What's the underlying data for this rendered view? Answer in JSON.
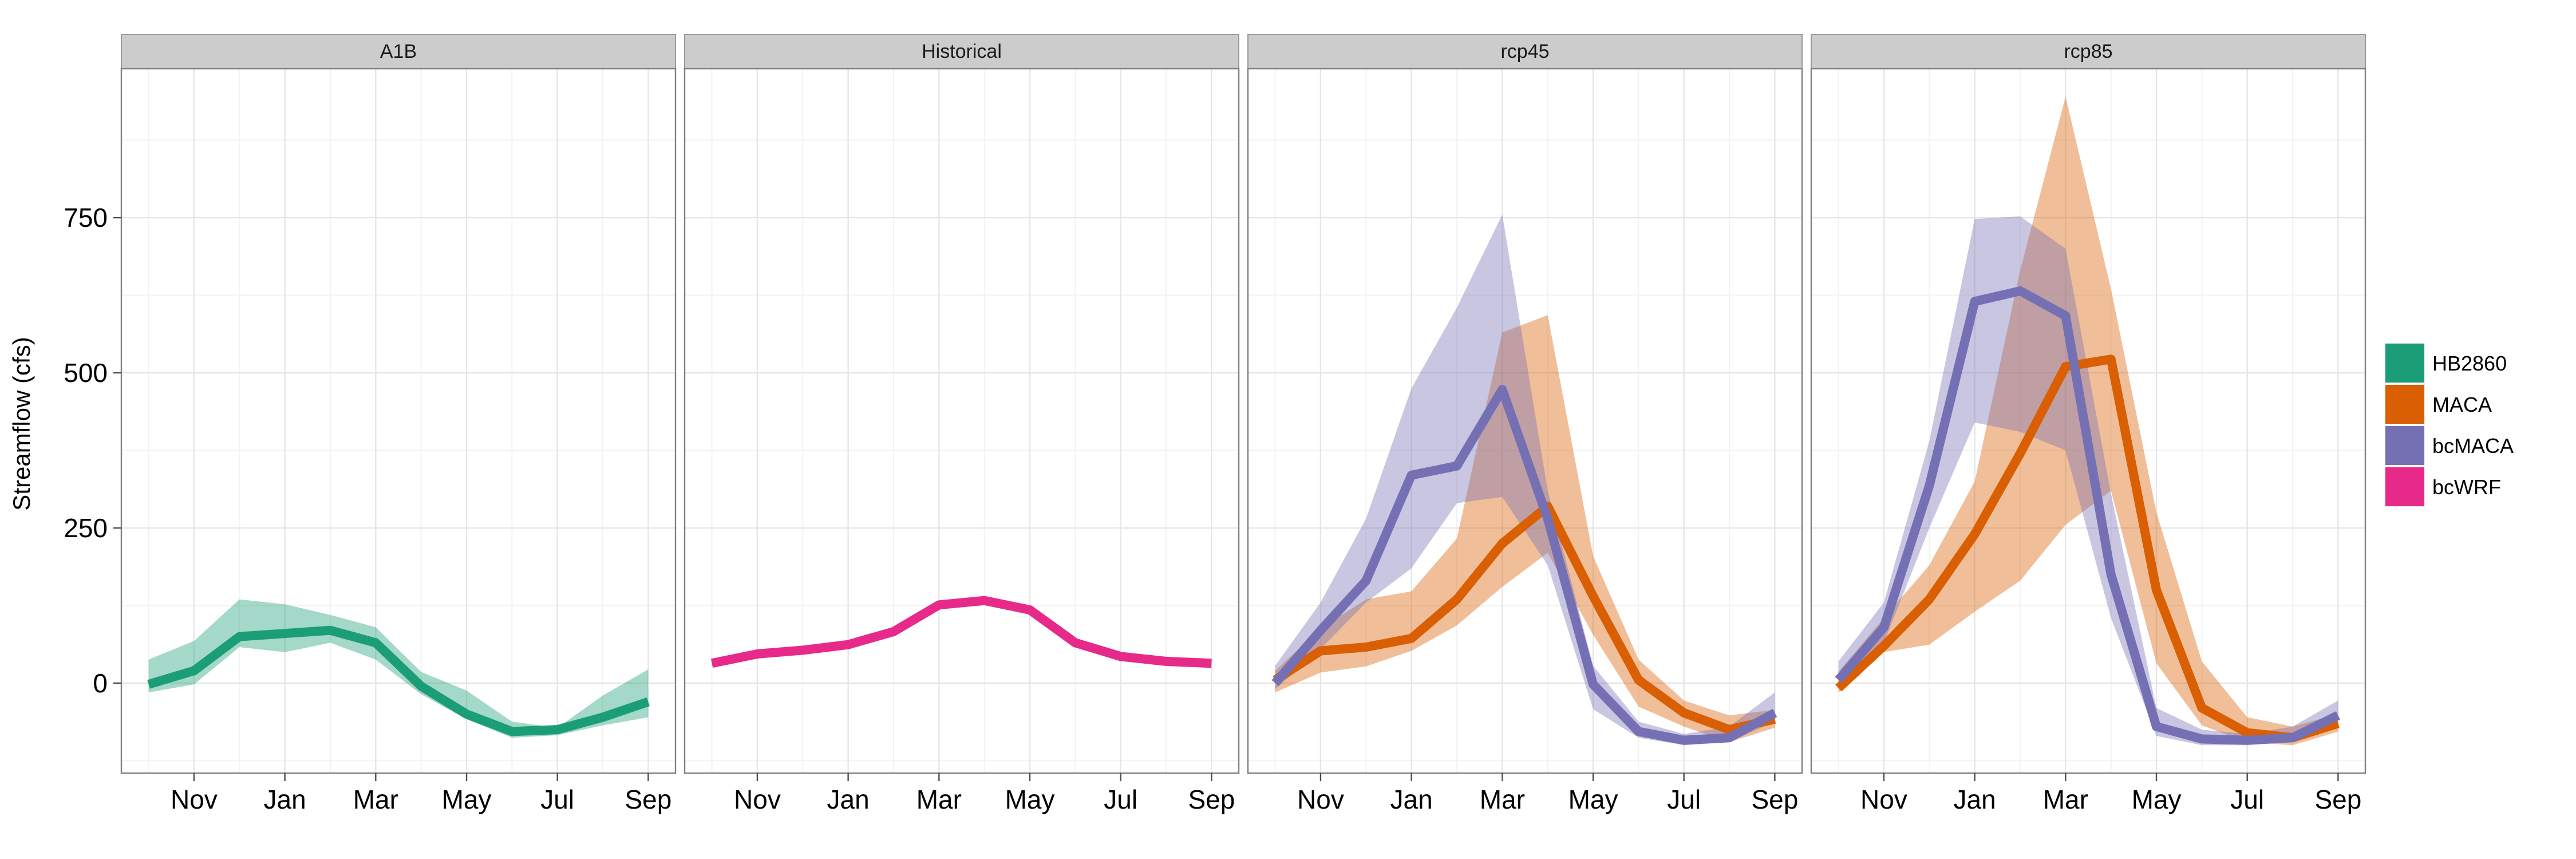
{
  "chart_data": {
    "type": "line",
    "ylabel": "Streamflow (cfs)",
    "xlabel": "",
    "x_tick_labels": [
      "Nov",
      "Jan",
      "Mar",
      "May",
      "Jul",
      "Sep"
    ],
    "x_tick_positions": [
      1,
      3,
      5,
      7,
      9,
      11
    ],
    "x_range": [
      -0.6,
      11.6
    ],
    "y_ticks": [
      0,
      250,
      500,
      750
    ],
    "y_range": [
      -145,
      990
    ],
    "grid": true,
    "legend": {
      "placement": "right",
      "entries": [
        {
          "name": "HB2860",
          "color": "#1b9e77"
        },
        {
          "name": "MACA",
          "color": "#d95f02"
        },
        {
          "name": "bcMACA",
          "color": "#7570b3"
        },
        {
          "name": "bcWRF",
          "color": "#e7298a"
        }
      ]
    },
    "panels": [
      {
        "title": "A1B",
        "series": [
          {
            "name": "HB2860",
            "x": [
              0,
              1,
              2,
              3,
              4,
              5,
              6,
              7,
              8,
              9,
              10,
              11
            ],
            "mean": [
              -2,
              20,
              75,
              80,
              85,
              65,
              -5,
              -50,
              -78,
              -75,
              -55,
              -30
            ],
            "lower": [
              -15,
              -2,
              58,
              50,
              65,
              38,
              -18,
              -58,
              -88,
              -84,
              -68,
              -55
            ],
            "upper": [
              38,
              68,
              135,
              127,
              110,
              90,
              18,
              -12,
              -62,
              -72,
              -20,
              22
            ]
          }
        ]
      },
      {
        "title": "Historical",
        "series": [
          {
            "name": "bcWRF",
            "x": [
              0,
              1,
              2,
              3,
              4,
              5,
              6,
              7,
              8,
              9,
              10,
              11
            ],
            "mean": [
              32,
              47,
              53,
              62,
              83,
              126,
              133,
              118,
              65,
              43,
              35,
              32
            ]
          }
        ]
      },
      {
        "title": "rcp45",
        "series": [
          {
            "name": "MACA",
            "x": [
              0,
              1,
              2,
              3,
              4,
              5,
              6,
              7,
              8,
              9,
              10,
              11
            ],
            "mean": [
              5,
              52,
              58,
              72,
              135,
              225,
              285,
              140,
              5,
              -48,
              -75,
              -58
            ],
            "lower": [
              -15,
              17,
              27,
              52,
              93,
              155,
              210,
              78,
              -38,
              -70,
              -95,
              -72
            ],
            "upper": [
              20,
              88,
              135,
              148,
              233,
              565,
              593,
              205,
              38,
              -28,
              -52,
              -43
            ]
          },
          {
            "name": "bcMACA",
            "x": [
              0,
              1,
              2,
              3,
              4,
              5,
              6,
              7,
              8,
              9,
              10,
              11
            ],
            "mean": [
              0,
              85,
              165,
              335,
              350,
              473,
              265,
              -2,
              -78,
              -92,
              -88,
              -48
            ],
            "lower": [
              -10,
              55,
              130,
              185,
              290,
              300,
              190,
              -42,
              -88,
              -100,
              -95,
              -62
            ],
            "upper": [
              28,
              130,
              265,
              475,
              605,
              755,
              310,
              28,
              -62,
              -82,
              -70,
              -15
            ]
          }
        ]
      },
      {
        "title": "rcp85",
        "series": [
          {
            "name": "MACA",
            "x": [
              0,
              1,
              2,
              3,
              4,
              5,
              6,
              7,
              8,
              9,
              10,
              11
            ],
            "mean": [
              -8,
              60,
              135,
              240,
              370,
              510,
              522,
              150,
              -40,
              -80,
              -88,
              -65
            ],
            "lower": [
              -15,
              50,
              62,
              115,
              165,
              255,
              310,
              32,
              -68,
              -95,
              -100,
              -78
            ],
            "upper": [
              18,
              105,
              190,
              325,
              665,
              945,
              635,
              275,
              35,
              -55,
              -70,
              -50
            ]
          },
          {
            "name": "bcMACA",
            "x": [
              0,
              1,
              2,
              3,
              4,
              5,
              6,
              7,
              8,
              9,
              10,
              11
            ],
            "mean": [
              5,
              90,
              318,
              615,
              632,
              592,
              175,
              -70,
              -90,
              -92,
              -88,
              -52
            ],
            "lower": [
              -5,
              65,
              250,
              420,
              405,
              375,
              105,
              -85,
              -100,
              -100,
              -95,
              -65
            ],
            "upper": [
              35,
              130,
              390,
              748,
              752,
              700,
              305,
              -40,
              -75,
              -82,
              -70,
              -28
            ]
          }
        ]
      }
    ]
  }
}
